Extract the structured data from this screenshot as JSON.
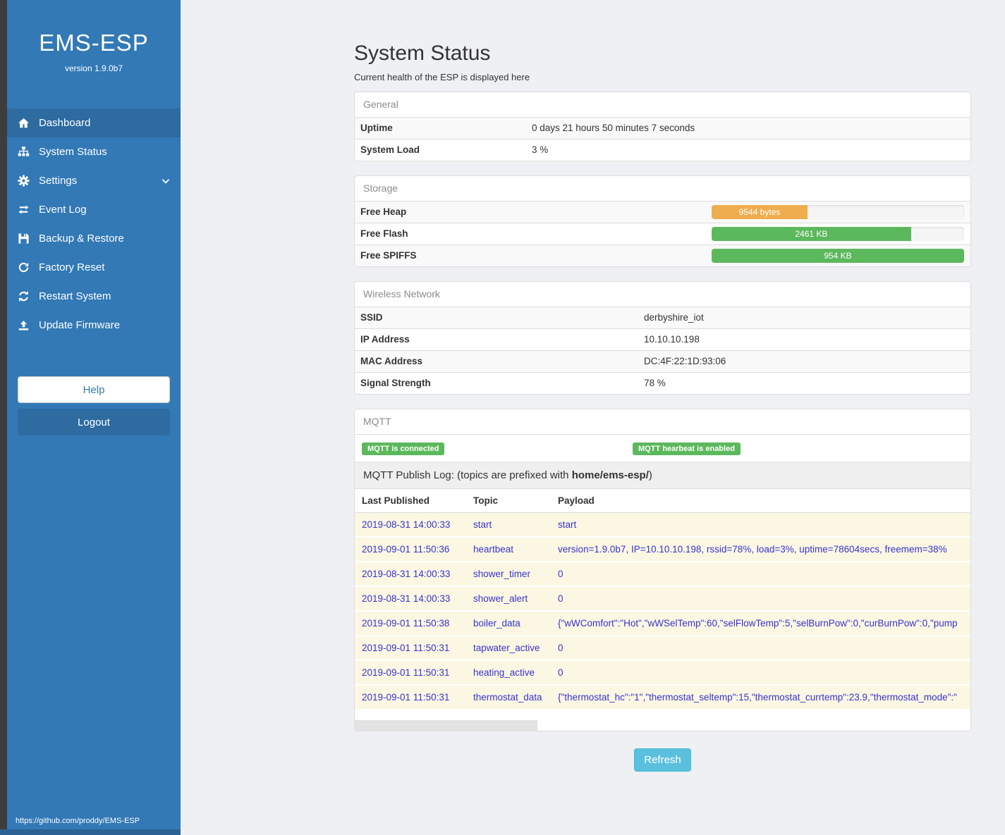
{
  "sidebar": {
    "title": "EMS-ESP",
    "version": "version 1.9.0b7",
    "nav": [
      {
        "label": "Dashboard",
        "icon": "home-icon",
        "active": true
      },
      {
        "label": "System Status",
        "icon": "sitemap-icon"
      },
      {
        "label": "Settings",
        "icon": "gear-icon",
        "chevron": "chevron-down-icon"
      },
      {
        "label": "Event Log",
        "icon": "exchange-icon"
      },
      {
        "label": "Backup & Restore",
        "icon": "save-icon"
      },
      {
        "label": "Factory Reset",
        "icon": "rotate-icon"
      },
      {
        "label": "Restart System",
        "icon": "refresh-icon"
      },
      {
        "label": "Update Firmware",
        "icon": "upload-icon"
      }
    ],
    "help_label": "Help",
    "logout_label": "Logout",
    "footer_link": "https://github.com/proddy/EMS-ESP"
  },
  "page": {
    "title": "System Status",
    "subtitle": "Current health of the ESP is displayed here",
    "refresh_label": "Refresh"
  },
  "general": {
    "heading": "General",
    "rows": [
      {
        "label": "Uptime",
        "value": "0 days 21 hours 50 minutes 7 seconds"
      },
      {
        "label": "System Load",
        "value": "3 %"
      }
    ]
  },
  "storage": {
    "heading": "Storage",
    "rows": [
      {
        "label": "Free Heap",
        "value": "9544 bytes",
        "percent": 38,
        "color": "#f0ad4e"
      },
      {
        "label": "Free Flash",
        "value": "2461 KB",
        "percent": 79,
        "color": "#5cb85c"
      },
      {
        "label": "Free SPIFFS",
        "value": "954 KB",
        "percent": 100,
        "color": "#5cb85c"
      }
    ]
  },
  "wireless": {
    "heading": "Wireless Network",
    "rows": [
      {
        "label": "SSID",
        "value": "derbyshire_iot"
      },
      {
        "label": "IP Address",
        "value": "10.10.10.198"
      },
      {
        "label": "MAC Address",
        "value": "DC:4F:22:1D:93:06"
      },
      {
        "label": "Signal Strength",
        "value": "78 %"
      }
    ]
  },
  "mqtt": {
    "heading": "MQTT",
    "badges": [
      "MQTT is connected",
      "MQTT hearbeat is enabled"
    ],
    "publish_log_prefix": "MQTT Publish Log: (topics are prefixed with ",
    "publish_log_bold": "home/ems-esp/",
    "publish_log_suffix": ")",
    "columns": [
      "Last Published",
      "Topic",
      "Payload"
    ],
    "rows": [
      [
        "2019-08-31 14:00:33",
        "start",
        "start"
      ],
      [
        "2019-09-01 11:50:36",
        "heartbeat",
        "version=1.9.0b7, IP=10.10.10.198, rssid=78%, load=3%, uptime=78604secs, freemem=38%"
      ],
      [
        "2019-08-31 14:00:33",
        "shower_timer",
        "0"
      ],
      [
        "2019-08-31 14:00:33",
        "shower_alert",
        "0"
      ],
      [
        "2019-09-01 11:50:38",
        "boiler_data",
        "{\"wWComfort\":\"Hot\",\"wWSelTemp\":60,\"selFlowTemp\":5,\"selBurnPow\":0,\"curBurnPow\":0,\"pump"
      ],
      [
        "2019-09-01 11:50:31",
        "tapwater_active",
        "0"
      ],
      [
        "2019-09-01 11:50:31",
        "heating_active",
        "0"
      ],
      [
        "2019-09-01 11:50:31",
        "thermostat_data",
        "{\"thermostat_hc\":\"1\",\"thermostat_seltemp\":15,\"thermostat_currtemp\":23.9,\"thermostat_mode\":\""
      ]
    ]
  },
  "colors": {
    "sidebar_blue": "#3279b6",
    "sidebar_active": "#2d6ba1",
    "success_green": "#5cb85c",
    "warning_orange": "#f0ad4e",
    "info_blue": "#5bc0de",
    "log_link_blue": "#3533d1",
    "log_row_cream": "#fcf7e2"
  }
}
